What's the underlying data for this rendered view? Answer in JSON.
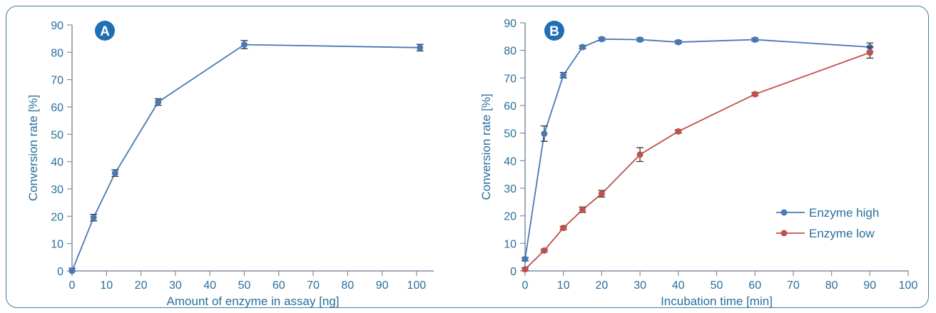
{
  "colors": {
    "axis": "#7f8fa0",
    "text": "#2a6f9b",
    "badge": "#1f6fb2",
    "series_high": "#4a78b5",
    "series_low": "#c0504d",
    "errorbar": "#333333"
  },
  "chart_data": [
    {
      "type": "line",
      "panel_label": "A",
      "xlabel": "Amount of enzyme in assay [ng]",
      "ylabel": "Conversion rate [%]",
      "xlim": [
        0,
        105
      ],
      "ylim": [
        0,
        90
      ],
      "xticks": [
        0,
        10,
        20,
        30,
        40,
        50,
        60,
        70,
        80,
        90,
        100
      ],
      "yticks": [
        0,
        10,
        20,
        30,
        40,
        50,
        60,
        70,
        80,
        90
      ],
      "series": [
        {
          "color": "#4a78b5",
          "x": [
            0,
            6.25,
            12.5,
            25,
            50,
            101
          ],
          "y": [
            0,
            19.5,
            35.8,
            61.8,
            82.8,
            81.7
          ],
          "err": [
            1.0,
            1.2,
            1.2,
            1.2,
            1.5,
            1.2
          ]
        }
      ]
    },
    {
      "type": "line",
      "panel_label": "B",
      "xlabel": "Incubation time [min]",
      "ylabel": "Conversion rate [%]",
      "xlim": [
        0,
        100
      ],
      "ylim": [
        0,
        90
      ],
      "xticks": [
        0,
        10,
        20,
        30,
        40,
        50,
        60,
        70,
        80,
        90,
        100
      ],
      "yticks": [
        0,
        10,
        20,
        30,
        40,
        50,
        60,
        70,
        80,
        90
      ],
      "legend_position": "bottom-right",
      "series": [
        {
          "name": "Enzyme high",
          "color": "#4a78b5",
          "x": [
            0,
            5,
            10,
            15,
            20,
            30,
            40,
            60,
            90
          ],
          "y": [
            4.3,
            49.8,
            71.0,
            81.2,
            84.1,
            83.9,
            83.0,
            83.9,
            81.2
          ],
          "err": [
            0.6,
            2.8,
            1.0,
            0.6,
            0.6,
            0.6,
            0.6,
            0.6,
            1.5
          ]
        },
        {
          "name": "Enzyme low",
          "color": "#c0504d",
          "x": [
            0,
            5,
            10,
            15,
            20,
            30,
            40,
            60,
            90
          ],
          "y": [
            0.6,
            7.4,
            15.6,
            22.2,
            28.0,
            42.2,
            50.6,
            64.1,
            79.2
          ],
          "err": [
            0.5,
            0.5,
            0.6,
            1.0,
            1.2,
            2.5,
            0.6,
            0.6,
            2.0
          ]
        }
      ]
    }
  ]
}
